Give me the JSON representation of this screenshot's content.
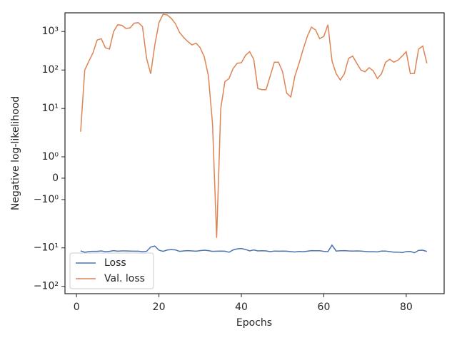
{
  "chart_data": {
    "type": "line",
    "x_label": "Epochs",
    "y_label": "Negative log-likelihood",
    "yscale": "symlog",
    "x": [
      1,
      2,
      3,
      4,
      5,
      6,
      7,
      8,
      9,
      10,
      11,
      12,
      13,
      14,
      15,
      16,
      17,
      18,
      19,
      20,
      21,
      22,
      23,
      24,
      25,
      26,
      27,
      28,
      29,
      30,
      31,
      32,
      33,
      34,
      35,
      36,
      37,
      38,
      39,
      40,
      41,
      42,
      43,
      44,
      45,
      46,
      47,
      48,
      49,
      50,
      51,
      52,
      53,
      54,
      55,
      56,
      57,
      58,
      59,
      60,
      61,
      62,
      63,
      64,
      65,
      66,
      67,
      68,
      69,
      70,
      71,
      72,
      73,
      74,
      75,
      76,
      77,
      78,
      79,
      80,
      81,
      82,
      83,
      84,
      85
    ],
    "series": [
      {
        "name": "Loss",
        "color": "#4c72b0",
        "values": [
          -12,
          -13,
          -12.5,
          -12.3,
          -12.3,
          -12,
          -12.6,
          -12.3,
          -11.8,
          -12.2,
          -12,
          -12,
          -12.1,
          -12.2,
          -12.2,
          -12.6,
          -12.3,
          -9.5,
          -9,
          -11.5,
          -12.3,
          -11.4,
          -11.1,
          -11.3,
          -12.3,
          -12,
          -11.8,
          -12,
          -12.2,
          -11.8,
          -11.5,
          -11.8,
          -12.3,
          -12.2,
          -12.1,
          -12.2,
          -13,
          -11.3,
          -10.6,
          -10.4,
          -11,
          -12,
          -11.3,
          -12,
          -11.9,
          -12,
          -12.5,
          -12.1,
          -12.2,
          -12.1,
          -12.2,
          -12.5,
          -12.8,
          -12.4,
          -12.6,
          -12.2,
          -11.8,
          -11.9,
          -11.9,
          -12.3,
          -12.5,
          -8.5,
          -12.1,
          -11.9,
          -11.8,
          -12,
          -12.1,
          -12,
          -12.1,
          -12.4,
          -12.6,
          -12.6,
          -12.7,
          -12.1,
          -12.1,
          -12.5,
          -12.9,
          -12.9,
          -13.3,
          -12.5,
          -12.4,
          -13.4,
          -11.6,
          -11.5,
          -12.4
        ]
      },
      {
        "name": "Val. loss",
        "color": "#dd8452",
        "values": [
          2.5,
          100,
          170,
          280,
          600,
          650,
          380,
          350,
          1000,
          1500,
          1450,
          1200,
          1250,
          1650,
          1700,
          1350,
          200,
          80,
          450,
          1700,
          2800,
          2700,
          2200,
          1600,
          950,
          700,
          550,
          450,
          500,
          380,
          220,
          70,
          4,
          -5.5,
          10,
          50,
          60,
          110,
          150,
          155,
          240,
          300,
          190,
          33,
          31,
          31,
          70,
          160,
          160,
          90,
          25,
          20,
          70,
          150,
          350,
          750,
          1300,
          1100,
          650,
          750,
          1500,
          170,
          80,
          55,
          80,
          200,
          230,
          150,
          100,
          90,
          115,
          95,
          60,
          80,
          160,
          190,
          160,
          180,
          230,
          300,
          80,
          82,
          350,
          420,
          150
        ]
      }
    ],
    "xlim": [
      -2.8,
      89.2
    ],
    "xticks": [
      0,
      20,
      40,
      60,
      80
    ],
    "ylim": [
      -155,
      3060
    ],
    "yticks": [
      {
        "value": -100,
        "label": "−10²"
      },
      {
        "value": -10,
        "label": "−10¹"
      },
      {
        "value": -1,
        "label": "−10⁰"
      },
      0,
      {
        "value": 1,
        "label": "10⁰"
      },
      {
        "value": 10,
        "label": "10¹"
      },
      {
        "value": 100,
        "label": "10²"
      },
      {
        "value": 1000,
        "label": "10³"
      }
    ],
    "legend": "lower left",
    "grid": false
  }
}
